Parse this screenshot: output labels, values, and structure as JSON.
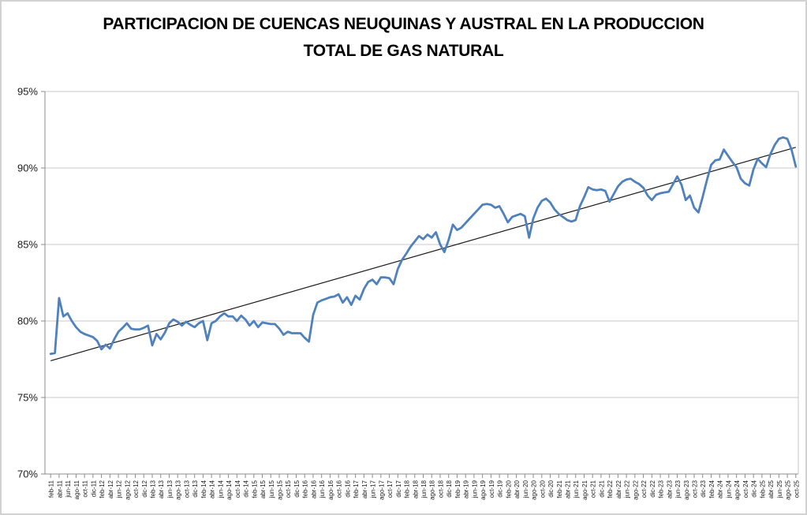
{
  "chart": {
    "title": "PARTICIPACION DE CUENCAS NEUQUINAS Y AUSTRAL EN LA PRODUCCION TOTAL DE GAS NATURAL"
  },
  "chart_data": {
    "type": "line",
    "title": "PARTICIPACION DE CUENCAS NEUQUINAS Y AUSTRAL EN LA PRODUCCION TOTAL DE GAS NATURAL",
    "xlabel": "",
    "ylabel": "",
    "ylim": [
      70,
      95
    ],
    "y_tick_step": 5,
    "y_tick_labels": [
      "70%",
      "75%",
      "80%",
      "85%",
      "90%",
      "95%"
    ],
    "grid": "horizontal",
    "legend": "none",
    "x_frequency": "monthly",
    "x_range": "feb-11 to oct-25, labels every 2 months",
    "x_tick_labels": [
      "feb-11",
      "abr-11",
      "jun-11",
      "ago-11",
      "oct-11",
      "dic-11",
      "feb-12",
      "abr-12",
      "jun-12",
      "ago-12",
      "oct-12",
      "dic-12",
      "feb-13",
      "abr-13",
      "jun-13",
      "ago-13",
      "oct-13",
      "dic-13",
      "feb-14",
      "abr-14",
      "jun-14",
      "ago-14",
      "oct-14",
      "dic-14",
      "feb-15",
      "abr-15",
      "jun-15",
      "ago-15",
      "oct-15",
      "dic-15",
      "feb-16",
      "abr-16",
      "jun-16",
      "ago-16",
      "oct-16",
      "dic-16",
      "feb-17",
      "abr-17",
      "jun-17",
      "ago-17",
      "oct-17",
      "dic-17",
      "feb-18",
      "abr-18",
      "jun-18",
      "ago-18",
      "oct-18",
      "dic-18",
      "feb-19",
      "abr-19",
      "jun-19",
      "ago-19",
      "oct-19",
      "dic-19",
      "feb-20",
      "abr-20",
      "jun-20",
      "ago-20",
      "oct-20",
      "dic-20",
      "feb-21",
      "abr-21",
      "jun-21",
      "ago-21",
      "oct-21",
      "dic-21",
      "feb-22",
      "abr-22",
      "jun-22",
      "ago-22",
      "oct-22",
      "dic-22",
      "feb-23",
      "abr-23",
      "jun-23",
      "ago-23",
      "oct-23",
      "dic-23",
      "feb-24",
      "abr-24",
      "jun-24",
      "ago-24",
      "oct-24",
      "dic-24",
      "feb-25",
      "abr-25",
      "jun-25",
      "ago-25",
      "oct-25"
    ],
    "series": [
      {
        "color": "#4F81BD",
        "values": [
          77.85,
          77.9,
          81.5,
          80.3,
          80.5,
          80.0,
          79.6,
          79.3,
          79.15,
          79.05,
          78.95,
          78.7,
          78.15,
          78.45,
          78.2,
          78.8,
          79.3,
          79.55,
          79.85,
          79.5,
          79.45,
          79.45,
          79.55,
          79.7,
          78.4,
          79.15,
          78.8,
          79.25,
          79.85,
          80.1,
          79.95,
          79.7,
          79.95,
          79.75,
          79.6,
          79.85,
          80.0,
          78.75,
          79.85,
          80.0,
          80.3,
          80.5,
          80.3,
          80.3,
          80.0,
          80.35,
          80.1,
          79.7,
          80.0,
          79.6,
          79.9,
          79.85,
          79.8,
          79.8,
          79.5,
          79.1,
          79.3,
          79.2,
          79.2,
          79.2,
          78.9,
          78.65,
          80.4,
          81.2,
          81.35,
          81.45,
          81.55,
          81.6,
          81.75,
          81.2,
          81.55,
          81.05,
          81.65,
          81.4,
          82.1,
          82.55,
          82.7,
          82.4,
          82.85,
          82.85,
          82.8,
          82.4,
          83.4,
          84.0,
          84.4,
          84.85,
          85.2,
          85.55,
          85.35,
          85.65,
          85.45,
          85.8,
          85.0,
          84.5,
          85.3,
          86.3,
          85.95,
          86.1,
          86.4,
          86.7,
          87.0,
          87.3,
          87.6,
          87.65,
          87.6,
          87.4,
          87.5,
          87.0,
          86.45,
          86.8,
          86.9,
          87.0,
          86.85,
          85.45,
          86.7,
          87.4,
          87.85,
          88.0,
          87.75,
          87.3,
          87.0,
          86.8,
          86.6,
          86.5,
          86.6,
          87.5,
          88.1,
          88.75,
          88.6,
          88.55,
          88.6,
          88.5,
          87.8,
          88.3,
          88.8,
          89.1,
          89.25,
          89.3,
          89.1,
          88.95,
          88.7,
          88.2,
          87.9,
          88.25,
          88.35,
          88.4,
          88.45,
          88.95,
          89.45,
          88.9,
          87.9,
          88.2,
          87.4,
          87.1,
          88.1,
          89.2,
          90.2,
          90.5,
          90.55,
          91.2,
          90.8,
          90.4,
          90.05,
          89.3,
          89.0,
          88.85,
          89.9,
          90.6,
          90.3,
          90.05,
          90.9,
          91.5,
          91.9,
          92.0,
          91.9,
          91.2,
          90.1
        ]
      }
    ],
    "trendline": {
      "type": "linear",
      "start_value": 77.4,
      "end_value": 91.35,
      "color": "#1a1a1a"
    },
    "colors": {
      "series_line": "#4F81BD",
      "trendline": "#1a1a1a",
      "gridline": "#c8c8c8",
      "axis_line": "#8c8c8c",
      "label_text": "#1a1a1a",
      "background": "#ffffff"
    }
  }
}
